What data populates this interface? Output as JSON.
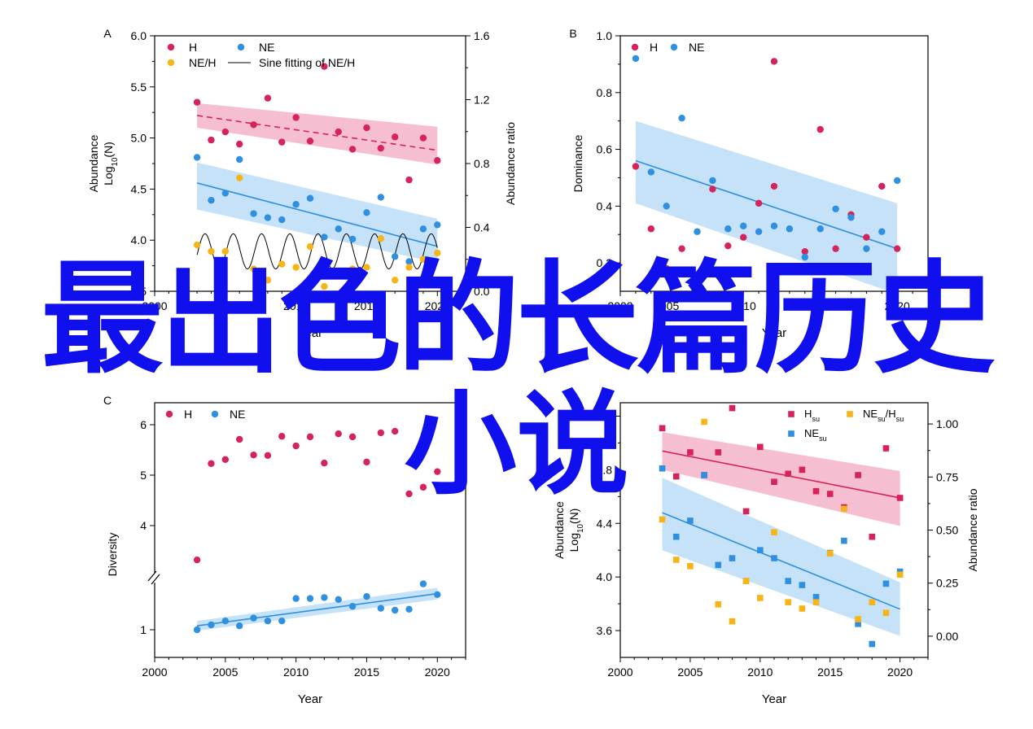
{
  "colors": {
    "H": "#d6235a",
    "NE": "#2f8fe0",
    "NEH": "#f7b417",
    "bandH": "#f3aac2",
    "bandNE": "#b2d8f6",
    "sine": "#000000",
    "axis": "#000000"
  },
  "overlay": {
    "line1": "最出色的长篇历史",
    "line2": "小说"
  },
  "chart_data": [
    {
      "id": "A",
      "type": "scatter",
      "panel_label": "A",
      "xlabel": "Year",
      "ylabel": "Abundance",
      "ylabel2": "Log10(N)",
      "y2label": "Abundance ratio",
      "xlim": [
        2000,
        2022
      ],
      "ylim": [
        3.5,
        6.0
      ],
      "y2lim": [
        0,
        1.6
      ],
      "xticks": [
        2000,
        2005,
        2010,
        2015,
        2020
      ],
      "yticks": [
        3.5,
        4.0,
        4.5,
        5.0,
        5.5,
        6.0
      ],
      "ytick_labels": [
        "3.5",
        "4.0",
        "4.5",
        "5.0",
        "5.5",
        "6.0"
      ],
      "y2ticks": [
        0,
        0.4,
        0.8,
        1.2,
        1.6
      ],
      "y2tick_labels": [
        "0.0",
        "0.4",
        "0.8",
        "1.2",
        "1.6"
      ],
      "legend": [
        {
          "name": "H",
          "series": "H",
          "kind": "dot"
        },
        {
          "name": "NE",
          "series": "NE",
          "kind": "dot"
        },
        {
          "name": "NE/H",
          "series": "NEH",
          "kind": "dot"
        },
        {
          "name": "Sine fitting of NE/H",
          "series": "sine",
          "kind": "line"
        }
      ],
      "series": [
        {
          "name": "H",
          "color": "H",
          "axis": "y",
          "x": [
            2003,
            2004,
            2005,
            2006,
            2007,
            2008,
            2009,
            2010,
            2011,
            2012,
            2013,
            2014,
            2015,
            2016,
            2017,
            2018,
            2019,
            2020
          ],
          "y": [
            5.35,
            4.98,
            5.06,
            4.94,
            5.13,
            5.39,
            4.96,
            5.2,
            4.97,
            5.7,
            5.06,
            4.89,
            5.1,
            4.9,
            5.01,
            4.59,
            5.0,
            4.78
          ]
        },
        {
          "name": "NE",
          "color": "NE",
          "axis": "y",
          "x": [
            2003,
            2004,
            2005,
            2006,
            2007,
            2008,
            2009,
            2010,
            2011,
            2012,
            2013,
            2014,
            2015,
            2016,
            2017,
            2018,
            2019,
            2020
          ],
          "y": [
            4.81,
            4.39,
            4.46,
            4.79,
            4.26,
            4.22,
            4.2,
            4.35,
            4.41,
            4.03,
            4.11,
            4.01,
            4.27,
            4.42,
            3.84,
            3.79,
            4.11,
            4.15
          ]
        },
        {
          "name": "NE/H",
          "color": "NEH",
          "axis": "y2",
          "x": [
            2003,
            2004,
            2005,
            2006,
            2007,
            2008,
            2009,
            2010,
            2011,
            2012,
            2013,
            2014,
            2015,
            2016,
            2017,
            2018,
            2019,
            2020
          ],
          "y": [
            0.29,
            0.25,
            0.25,
            0.71,
            0.14,
            0.07,
            0.17,
            0.15,
            0.28,
            0.03,
            0.12,
            0.14,
            0.15,
            0.33,
            0.07,
            0.15,
            0.2,
            0.24
          ]
        }
      ],
      "fits": [
        {
          "series": "H",
          "color": "H",
          "dashed": true,
          "x": [
            2003,
            2020
          ],
          "y": [
            5.22,
            4.88
          ],
          "band_lower": [
            5.1,
            4.74
          ],
          "band_upper": [
            5.34,
            5.11
          ]
        },
        {
          "series": "NE",
          "color": "NE",
          "dashed": false,
          "x": [
            2003,
            2020
          ],
          "y": [
            4.56,
            3.94
          ],
          "band_lower": [
            4.3,
            3.78
          ],
          "band_upper": [
            4.76,
            4.21
          ]
        }
      ],
      "sine": {
        "axis": "y2",
        "x_start": 2003,
        "x_end": 2020,
        "mean": 0.25,
        "amplitude": 0.11,
        "period": 2.0,
        "phase": -0.2
      }
    },
    {
      "id": "B",
      "type": "scatter",
      "panel_label": "B",
      "xlabel": "Year",
      "ylabel": "Dominance",
      "xlim": [
        2002,
        2022
      ],
      "ylim": [
        0.1,
        1.0
      ],
      "xticks": [
        2002,
        2005,
        2010,
        2015,
        2020
      ],
      "xtick_labels": [
        "2002",
        "2005",
        "2010",
        "2015",
        "2020"
      ],
      "yticks": [
        0.2,
        0.4,
        0.6,
        0.8,
        1.0
      ],
      "ytick_labels": [
        "0.2",
        "0.4",
        "0.6",
        "0.8",
        "1.0"
      ],
      "legend": [
        {
          "name": "H",
          "series": "H",
          "kind": "dot"
        },
        {
          "name": "NE",
          "series": "NE",
          "kind": "dot"
        }
      ],
      "series": [
        {
          "name": "H",
          "color": "H",
          "axis": "y",
          "x": [
            2003,
            2004,
            2005,
            2006,
            2008,
            2009,
            2010,
            2011,
            2012,
            2012,
            2014,
            2015,
            2016,
            2017,
            2018,
            2019,
            2020
          ],
          "y": [
            0.54,
            0.32,
            0.18,
            0.25,
            0.46,
            0.26,
            0.29,
            0.41,
            0.91,
            0.47,
            0.24,
            0.67,
            0.25,
            0.37,
            0.29,
            0.47,
            0.25
          ]
        },
        {
          "name": "NE",
          "color": "NE",
          "axis": "y",
          "x": [
            2003,
            2004,
            2005,
            2006,
            2007,
            2008,
            2009,
            2010,
            2011,
            2012,
            2013,
            2014,
            2015,
            2016,
            2017,
            2018,
            2019,
            2020
          ],
          "y": [
            0.92,
            0.52,
            0.4,
            0.71,
            0.31,
            0.49,
            0.32,
            0.33,
            0.31,
            0.33,
            0.32,
            0.22,
            0.32,
            0.39,
            0.36,
            0.25,
            0.31,
            0.49
          ]
        }
      ],
      "fits": [
        {
          "series": "NE",
          "color": "NE",
          "dashed": false,
          "x": [
            2003,
            2020
          ],
          "y": [
            0.56,
            0.25
          ],
          "band_lower": [
            0.41,
            0.09
          ],
          "band_upper": [
            0.7,
            0.41
          ]
        }
      ]
    },
    {
      "id": "C",
      "type": "scatter",
      "panel_label": "C",
      "xlabel": "Year",
      "ylabel": "Diversity",
      "xlim": [
        2000,
        2022
      ],
      "xticks": [
        2000,
        2005,
        2010,
        2015,
        2020
      ],
      "broken_axis": true,
      "yticks": [
        1,
        4,
        5,
        6
      ],
      "ytick_labels": [
        "1",
        "4",
        "5",
        "6"
      ],
      "legend": [
        {
          "name": "H",
          "series": "H",
          "kind": "dot"
        },
        {
          "name": "NE",
          "series": "NE",
          "kind": "dot"
        }
      ],
      "series": [
        {
          "name": "H",
          "color": "H",
          "axis": "y",
          "x": [
            2003,
            2004,
            2005,
            2006,
            2007,
            2008,
            2009,
            2010,
            2011,
            2012,
            2013,
            2014,
            2015,
            2016,
            2017,
            2018,
            2019,
            2020
          ],
          "y": [
            3.32,
            5.23,
            5.31,
            5.71,
            5.4,
            5.39,
            5.77,
            5.58,
            5.76,
            5.24,
            5.82,
            5.76,
            5.26,
            5.84,
            5.87,
            4.63,
            4.76,
            5.07
          ]
        },
        {
          "name": "NE",
          "color": "NE",
          "axis": "y",
          "x": [
            2003,
            2004,
            2005,
            2006,
            2007,
            2008,
            2009,
            2010,
            2011,
            2012,
            2013,
            2014,
            2015,
            2016,
            2017,
            2018,
            2019,
            2020
          ],
          "y": [
            1.0,
            1.05,
            1.09,
            1.04,
            1.12,
            1.09,
            1.09,
            1.32,
            1.32,
            1.33,
            1.31,
            1.24,
            1.34,
            1.22,
            1.2,
            1.21,
            1.47,
            1.36
          ]
        }
      ],
      "fits": [
        {
          "series": "NE",
          "color": "NE",
          "dashed": false,
          "x": [
            2003,
            2020
          ],
          "y": [
            1.04,
            1.37
          ],
          "band_lower": [
            0.99,
            1.31
          ],
          "band_upper": [
            1.09,
            1.43
          ]
        }
      ]
    },
    {
      "id": "D",
      "type": "scatter",
      "panel_label": "D",
      "marker": "square",
      "xlabel": "Year",
      "ylabel": "Abundance",
      "ylabel2": "Log10(N)",
      "y2label": "Abundance ratio",
      "xlim": [
        2000,
        2022
      ],
      "ylim": [
        3.4,
        5.3
      ],
      "y2lim": [
        -0.1,
        1.1
      ],
      "xticks": [
        2000,
        2005,
        2010,
        2015,
        2020
      ],
      "yticks": [
        3.6,
        4.0,
        4.4,
        4.8,
        5.2
      ],
      "ytick_labels": [
        "3.6",
        "4.0",
        "4.4",
        "4.8",
        "5.2"
      ],
      "y2ticks": [
        0,
        0.25,
        0.5,
        0.75,
        1.0
      ],
      "y2tick_labels": [
        "0.00",
        "0.25",
        "0.50",
        "0.75",
        "1.00"
      ],
      "legend": [
        {
          "name": "H",
          "sub": "su",
          "series": "H",
          "kind": "square"
        },
        {
          "name": "NE",
          "sub": "su",
          "series": "NEH",
          "kind": "square",
          "ratio": true
        },
        {
          "name": "NE",
          "sub": "su",
          "series": "NE",
          "kind": "square"
        }
      ],
      "series": [
        {
          "name": "Hsu",
          "color": "H",
          "axis": "y",
          "x": [
            2003,
            2004,
            2005,
            2006,
            2007,
            2008,
            2009,
            2010,
            2011,
            2012,
            2013,
            2014,
            2015,
            2016,
            2017,
            2018,
            2019,
            2020
          ],
          "y": [
            5.11,
            4.75,
            4.93,
            4.76,
            4.93,
            5.26,
            4.49,
            4.97,
            4.71,
            4.77,
            4.8,
            4.64,
            4.62,
            4.52,
            4.76,
            4.3,
            4.96,
            4.59
          ]
        },
        {
          "name": "NEsu",
          "color": "NE",
          "axis": "y",
          "x": [
            2003,
            2004,
            2005,
            2006,
            2007,
            2008,
            2009,
            2010,
            2011,
            2012,
            2013,
            2014,
            2015,
            2016,
            2017,
            2018,
            2019,
            2020
          ],
          "y": [
            4.81,
            4.3,
            4.42,
            4.76,
            4.09,
            4.14,
            3.97,
            4.2,
            4.14,
            3.97,
            3.94,
            3.85,
            4.18,
            4.27,
            3.65,
            3.5,
            3.95,
            4.04
          ]
        },
        {
          "name": "NEsu/Hsu",
          "color": "NEH",
          "axis": "y2",
          "x": [
            2003,
            2004,
            2005,
            2006,
            2007,
            2008,
            2009,
            2010,
            2011,
            2012,
            2013,
            2014,
            2015,
            2016,
            2017,
            2018,
            2019,
            2020
          ],
          "y": [
            0.55,
            0.36,
            0.33,
            1.01,
            0.15,
            0.07,
            0.26,
            0.18,
            0.49,
            0.16,
            0.13,
            0.16,
            0.39,
            0.6,
            0.08,
            0.16,
            0.11,
            0.29
          ]
        }
      ],
      "fits": [
        {
          "series": "Hsu",
          "color": "H",
          "dashed": false,
          "x": [
            2003,
            2020
          ],
          "y": [
            4.94,
            4.59
          ],
          "band_lower": [
            4.8,
            4.38
          ],
          "band_upper": [
            5.08,
            4.79
          ]
        },
        {
          "series": "NEsu",
          "color": "NE",
          "dashed": false,
          "x": [
            2003,
            2020
          ],
          "y": [
            4.48,
            3.76
          ],
          "band_lower": [
            4.2,
            3.56
          ],
          "band_upper": [
            4.74,
            3.96
          ]
        }
      ]
    }
  ]
}
